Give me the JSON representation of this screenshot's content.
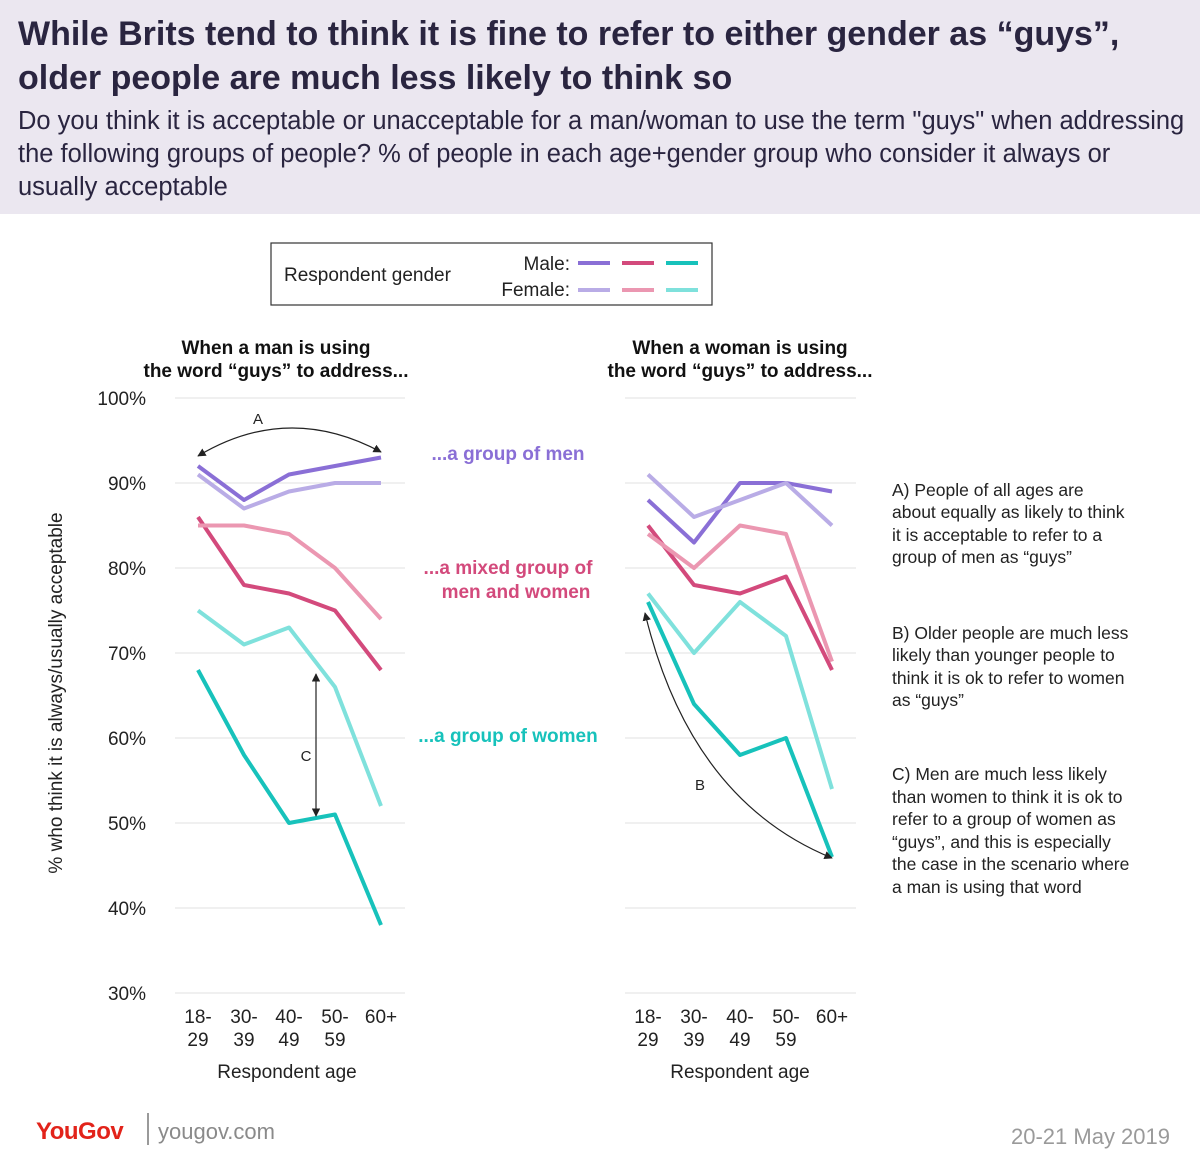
{
  "header": {
    "title": "While Brits tend to think it is fine to refer to either gender as “guys”, older people are much less likely to think so",
    "subtitle": "Do you think it is acceptable or unacceptable for a man/woman to use the term \"guys\" when addressing the following groups of people? % of people in each age+gender group who consider it always or usually acceptable"
  },
  "legend": {
    "title": "Respondent gender",
    "male_label": "Male:",
    "female_label": "Female:"
  },
  "colors": {
    "men_male": "#8a6fd6",
    "men_female": "#b9ace6",
    "mixed_male": "#d34a7c",
    "mixed_female": "#eb97b1",
    "women_male": "#17c2bb",
    "women_female": "#7fe1dc",
    "grid": "#e2e2e2",
    "group_men_text": "#8a6fd6",
    "group_mixed_text": "#d34a7c",
    "group_women_text": "#17c2bb"
  },
  "group_labels": {
    "men": "...a group of men",
    "mixed_line1": "...a mixed group of",
    "mixed_line2": "men and women",
    "women": "...a group of women"
  },
  "annotations": {
    "A_marker": "A",
    "B_marker": "B",
    "C_marker": "C",
    "A_text": [
      "A) People of all ages are",
      "about equally as likely to think",
      "it is acceptable to refer to a",
      "group of men as “guys”"
    ],
    "B_text": [
      "B) Older people are much less",
      "likely than younger people to",
      "think it is ok to refer to women",
      "as “guys”"
    ],
    "C_text": [
      "C) Men are much less likely",
      "than women to think it is ok to",
      "refer to a group of women as",
      "“guys”, and this is especially",
      "the case in the scenario where",
      "a man is using that word"
    ]
  },
  "footer": {
    "logo": "YouGov",
    "url": "yougov.com",
    "date": "20-21 May 2019"
  },
  "chart_data": [
    {
      "type": "line",
      "title": "When a man is using the word “guys” to address...",
      "title_lines": [
        "When a man is using",
        "the word “guys” to address..."
      ],
      "xlabel": "Respondent age",
      "ylabel": "% who think it is always/usually acceptable",
      "categories": [
        [
          "18-",
          "29"
        ],
        [
          "30-",
          "39"
        ],
        [
          "40-",
          "49"
        ],
        [
          "50-",
          "59"
        ],
        [
          "60+",
          ""
        ]
      ],
      "yticks": [
        "100%",
        "90%",
        "80%",
        "70%",
        "60%",
        "50%",
        "40%",
        "30%"
      ],
      "ylim": [
        30,
        100
      ],
      "grid": true,
      "series": [
        {
          "name": "Male",
          "group": "...a group of men",
          "color_key": "men_male",
          "values": [
            92,
            88,
            91,
            92,
            93
          ]
        },
        {
          "name": "Female",
          "group": "...a group of men",
          "color_key": "men_female",
          "values": [
            91,
            87,
            89,
            90,
            90
          ]
        },
        {
          "name": "Male",
          "group": "...a mixed group of men and women",
          "color_key": "mixed_male",
          "values": [
            86,
            78,
            77,
            75,
            68
          ]
        },
        {
          "name": "Female",
          "group": "...a mixed group of men and women",
          "color_key": "mixed_female",
          "values": [
            85,
            85,
            84,
            80,
            74
          ]
        },
        {
          "name": "Male",
          "group": "...a group of women",
          "color_key": "women_male",
          "values": [
            68,
            58,
            50,
            51,
            38
          ]
        },
        {
          "name": "Female",
          "group": "...a group of women",
          "color_key": "women_female",
          "values": [
            75,
            71,
            73,
            66,
            52
          ]
        }
      ]
    },
    {
      "type": "line",
      "title": "When a woman is using the word “guys” to address...",
      "title_lines": [
        "When a woman is using",
        "the word “guys” to address..."
      ],
      "xlabel": "Respondent age",
      "categories": [
        [
          "18-",
          "29"
        ],
        [
          "30-",
          "39"
        ],
        [
          "40-",
          "49"
        ],
        [
          "50-",
          "59"
        ],
        [
          "60+",
          ""
        ]
      ],
      "ylim": [
        30,
        100
      ],
      "grid": true,
      "series": [
        {
          "name": "Male",
          "group": "...a group of men",
          "color_key": "men_male",
          "values": [
            88,
            83,
            90,
            90,
            89
          ]
        },
        {
          "name": "Female",
          "group": "...a group of men",
          "color_key": "men_female",
          "values": [
            91,
            86,
            88,
            90,
            85
          ]
        },
        {
          "name": "Male",
          "group": "...a mixed group of men and women",
          "color_key": "mixed_male",
          "values": [
            85,
            78,
            77,
            79,
            68
          ]
        },
        {
          "name": "Female",
          "group": "...a mixed group of men and women",
          "color_key": "mixed_female",
          "values": [
            84,
            80,
            85,
            84,
            69
          ]
        },
        {
          "name": "Male",
          "group": "...a group of women",
          "color_key": "women_male",
          "values": [
            76,
            64,
            58,
            60,
            46
          ]
        },
        {
          "name": "Female",
          "group": "...a group of women",
          "color_key": "women_female",
          "values": [
            77,
            70,
            76,
            72,
            54
          ]
        }
      ]
    }
  ]
}
